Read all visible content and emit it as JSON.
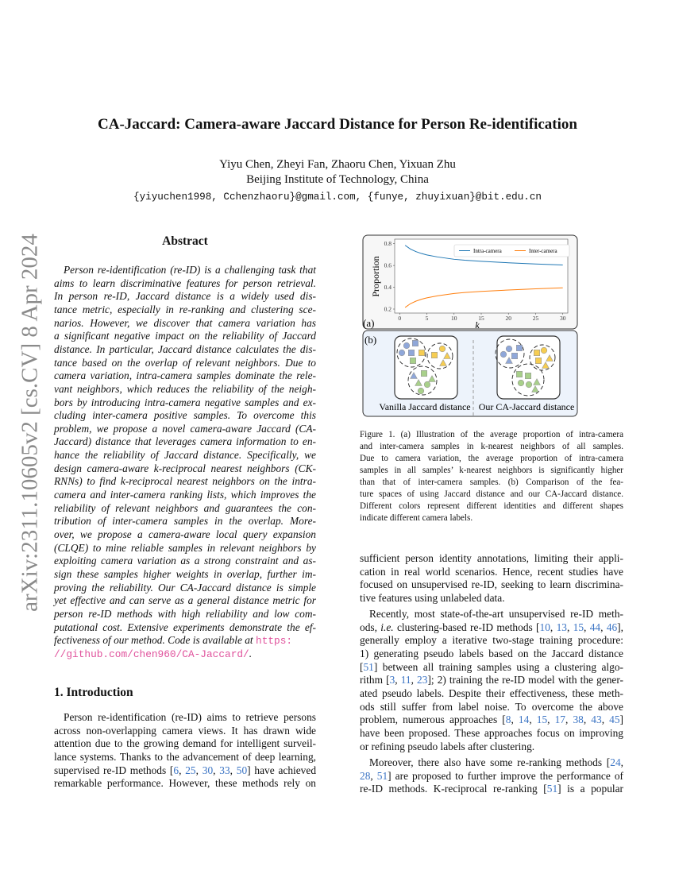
{
  "arxiv_stamp": "arXiv:2311.10605v2  [cs.CV]  8 Apr 2024",
  "title": "CA-Jaccard: Camera-aware Jaccard Distance for Person Re-identification",
  "authors": "Yiyu Chen, Zheyi Fan, Zhaoru Chen, Yixuan Zhu",
  "affiliation": "Beijing Institute of Technology, China",
  "emails": "{yiyuchen1998, Cchenzhaoru}@gmail.com, {funye, zhuyixuan}@bit.edu.cn",
  "abstract": {
    "heading": "Abstract",
    "lines": [
      "Person re-identification (re-ID) is a challenging task that",
      "aims to learn discriminative features for person retrieval.",
      "In person re-ID, Jaccard distance is a widely used dis-",
      "tance metric, especially in re-ranking and clustering sce-",
      "narios. However, we discover that camera variation has",
      "a significant negative impact on the reliability of Jaccard",
      "distance. In particular, Jaccard distance calculates the dis-",
      "tance based on the overlap of relevant neighbors. Due to",
      "camera variation, intra-camera samples dominate the rele-",
      "vant neighbors, which reduces the reliability of the neigh-",
      "bors by introducing intra-camera negative samples and ex-",
      "cluding inter-camera positive samples. To overcome this",
      "problem, we propose a novel camera-aware Jaccard (CA-",
      "Jaccard) distance that leverages camera information to en-",
      "hance the reliability of Jaccard distance. Specifically, we",
      "design camera-aware k-reciprocal nearest neighbors (CK-",
      "RNNs) to find k-reciprocal nearest neighbors on the intra-",
      "camera and inter-camera ranking lists, which improves the",
      "reliability of relevant neighbors and guarantees the con-",
      "tribution of inter-camera samples in the overlap. More-",
      "over, we propose a camera-aware local query expansion",
      "(CLQE) to mine reliable samples in relevant neighbors by",
      "exploiting camera variation as a strong constraint and as-",
      "sign these samples higher weights in overlap, further im-",
      "proving the reliability. Our CA-Jaccard distance is simple",
      "yet effective and can serve as a general distance metric for",
      "person re-ID methods with high reliability and low com-",
      "putational cost. Extensive experiments demonstrate the ef-"
    ],
    "line_before_url": "fectiveness of our method. Code is available at ",
    "url_part1": "https:",
    "url_part2": "//github.com/chen960/CA-Jaccard/",
    "url_end": "."
  },
  "intro": {
    "heading": "1. Introduction",
    "lines": [
      "Person re-identification (re-ID) aims to retrieve persons",
      "across non-overlapping camera views. It has drawn wide",
      "attention due to the growing demand for intelligent surveil-",
      "lance systems. Thanks to the advancement of deep learning,",
      "supervised re-ID methods [6, 25, 30, 33, 50] have achieved",
      "remarkable performance. However, these methods rely on"
    ]
  },
  "figure": {
    "panel_a_label": "(a)",
    "panel_b_label": "(b)",
    "vanilla_label": "Vanilla Jaccard distance",
    "ours_label": "Our CA-Jaccard distance",
    "colors": {
      "identity_blue": "#8fa7d9",
      "identity_yellow": "#f6cd52",
      "identity_green": "#a8d08a",
      "panel_b_bg": "#edf3fb"
    },
    "caption": [
      "Figure 1. (a) Illustration of the average proportion of intra-camera",
      "and inter-camera samples in k-nearest neighbors of all samples.",
      "Due to camera variation, the average proportion of intra-camera",
      "samples in all samples’ k-nearest neighbors is significantly higher",
      "than that of inter-camera samples. (b) Comparison of the fea-",
      "ture spaces of using Jaccard distance and our CA-Jaccard distance.",
      "Different colors represent different identities and different shapes",
      "indicate different camera labels."
    ]
  },
  "chart_data": {
    "type": "line",
    "xlabel": "k",
    "ylabel": "Proportion",
    "x": [
      1,
      2,
      3,
      4,
      5,
      7,
      10,
      12,
      15,
      20,
      25,
      30
    ],
    "series": [
      {
        "name": "Intra-camera",
        "color": "#1f77b4",
        "values": [
          0.785,
          0.75,
          0.727,
          0.71,
          0.697,
          0.678,
          0.657,
          0.648,
          0.638,
          0.625,
          0.614,
          0.605
        ]
      },
      {
        "name": "Inter-camera",
        "color": "#ff7f0e",
        "values": [
          0.215,
          0.25,
          0.273,
          0.29,
          0.303,
          0.322,
          0.343,
          0.352,
          0.362,
          0.375,
          0.386,
          0.395
        ]
      }
    ],
    "xlim": [
      0,
      30
    ],
    "ylim": [
      0.2,
      0.8
    ],
    "xticks": [
      "0",
      "5",
      "10",
      "15",
      "20",
      "25",
      "30"
    ],
    "yticks": [
      "0.2",
      "0.4",
      "0.6",
      "0.8"
    ],
    "legend": "top-right",
    "grid": false
  },
  "right_body": {
    "paragraphs": [
      {
        "indent": false,
        "lines": [
          "sufficient person identity annotations, limiting their appli-",
          "cation in real world scenarios. Hence, recent studies have",
          "focused on unsupervised re-ID, seeking to learn discrimina-",
          "tive features using unlabeled data."
        ]
      },
      {
        "indent": true,
        "lines": [
          "Recently, most state-of-the-art unsupervised re-ID meth-",
          "ods, i.e. clustering-based re-ID methods [10, 13, 15, 44, 46],",
          "generally employ a iterative two-stage training procedure:",
          "1) generating pseudo labels based on the Jaccard distance",
          "[51] between all training samples using a clustering algo-",
          "rithm [3, 11, 23]; 2) training the re-ID model with the gener-",
          "ated pseudo labels. Despite their effectiveness, these meth-",
          "ods still suffer from label noise. To overcome the above",
          "problem, numerous approaches [8, 14, 15, 17, 38, 43, 45]",
          "have been proposed. These approaches focus on improving",
          "or refining pseudo labels after clustering."
        ]
      },
      {
        "indent": true,
        "lines": [
          "Moreover, there also have some re-ranking methods [24,",
          "28, 51] are proposed to further improve the performance of",
          "re-ID methods. K-reciprocal re-ranking [51] is a popular"
        ]
      }
    ]
  }
}
